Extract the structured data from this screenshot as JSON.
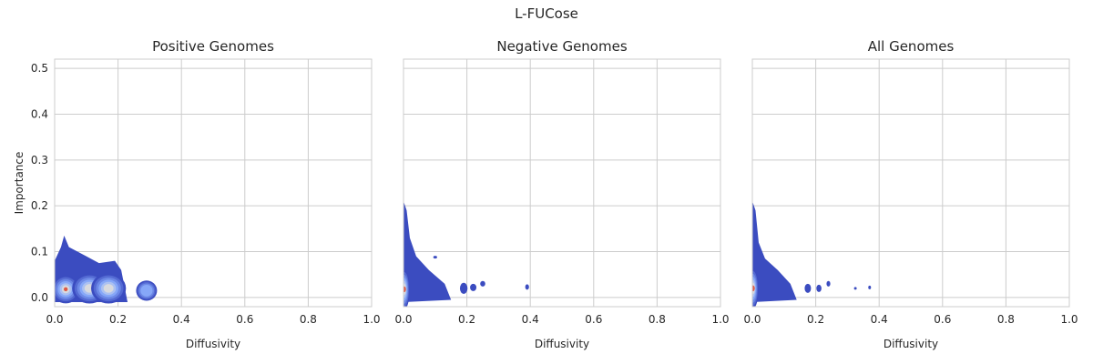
{
  "figure": {
    "title": "L-FUCose"
  },
  "chart_data": [
    {
      "type": "density-contour",
      "title": "Positive Genomes",
      "xlabel": "Diffusivity",
      "ylabel": "Importance",
      "xlim": [
        0.0,
        1.0
      ],
      "ylim": [
        -0.02,
        0.52
      ],
      "xticks": [
        0.0,
        0.2,
        0.4,
        0.6,
        0.8,
        1.0
      ],
      "xtick_labels": [
        "0.0",
        "0.2",
        "0.4",
        "0.6",
        "0.8",
        "1.0"
      ],
      "yticks": [
        0.0,
        0.1,
        0.2,
        0.3,
        0.4,
        0.5
      ],
      "ytick_labels": [
        "0.0",
        "0.1",
        "0.2",
        "0.3",
        "0.4",
        "0.5"
      ],
      "grid": true,
      "density_peaks": [
        {
          "x": 0.035,
          "y": 0.018,
          "sx": 0.02,
          "sy": 0.014,
          "w": 1.0
        },
        {
          "x": 0.11,
          "y": 0.02,
          "sx": 0.025,
          "sy": 0.015,
          "w": 0.62
        },
        {
          "x": 0.17,
          "y": 0.02,
          "sx": 0.025,
          "sy": 0.015,
          "w": 0.55
        },
        {
          "x": 0.29,
          "y": 0.015,
          "sx": 0.015,
          "sy": 0.01,
          "w": 0.35
        }
      ],
      "density_outline": [
        [
          0.0,
          -0.01
        ],
        [
          0.0,
          0.08
        ],
        [
          0.02,
          0.11
        ],
        [
          0.03,
          0.135
        ],
        [
          0.045,
          0.11
        ],
        [
          0.1,
          0.09
        ],
        [
          0.14,
          0.075
        ],
        [
          0.19,
          0.08
        ],
        [
          0.21,
          0.06
        ],
        [
          0.23,
          -0.01
        ]
      ]
    },
    {
      "type": "density-contour",
      "title": "Negative Genomes",
      "xlabel": "Diffusivity",
      "ylabel": "",
      "xlim": [
        0.0,
        1.0
      ],
      "ylim": [
        -0.02,
        0.52
      ],
      "xticks": [
        0.0,
        0.2,
        0.4,
        0.6,
        0.8,
        1.0
      ],
      "xtick_labels": [
        "0.0",
        "0.2",
        "0.4",
        "0.6",
        "0.8",
        "1.0"
      ],
      "yticks": [
        0.0,
        0.1,
        0.2,
        0.3,
        0.4,
        0.5
      ],
      "grid": true,
      "density_peaks": [
        {
          "x": 0.002,
          "y": 0.018,
          "sx": 0.008,
          "sy": 0.02,
          "w": 1.0
        }
      ],
      "density_outline": [
        [
          0.0,
          -0.01
        ],
        [
          0.0,
          0.21
        ],
        [
          0.01,
          0.19
        ],
        [
          0.02,
          0.13
        ],
        [
          0.04,
          0.09
        ],
        [
          0.08,
          0.06
        ],
        [
          0.13,
          0.03
        ],
        [
          0.15,
          -0.005
        ]
      ],
      "density_blobs": [
        {
          "x": 0.1,
          "y": 0.088,
          "rx": 0.006,
          "ry": 0.003
        },
        {
          "x": 0.19,
          "y": 0.02,
          "rx": 0.012,
          "ry": 0.012
        },
        {
          "x": 0.22,
          "y": 0.022,
          "rx": 0.01,
          "ry": 0.008
        },
        {
          "x": 0.25,
          "y": 0.03,
          "rx": 0.008,
          "ry": 0.006
        },
        {
          "x": 0.39,
          "y": 0.023,
          "rx": 0.006,
          "ry": 0.006
        }
      ]
    },
    {
      "type": "density-contour",
      "title": "All Genomes",
      "xlabel": "Diffusivity",
      "ylabel": "",
      "xlim": [
        0.0,
        1.0
      ],
      "ylim": [
        -0.02,
        0.52
      ],
      "xticks": [
        0.0,
        0.2,
        0.4,
        0.6,
        0.8,
        1.0
      ],
      "xtick_labels": [
        "0.0",
        "0.2",
        "0.4",
        "0.6",
        "0.8",
        "1.0"
      ],
      "yticks": [
        0.0,
        0.1,
        0.2,
        0.3,
        0.4,
        0.5
      ],
      "grid": true,
      "density_peaks": [
        {
          "x": 0.002,
          "y": 0.02,
          "sx": 0.008,
          "sy": 0.02,
          "w": 1.0
        }
      ],
      "density_outline": [
        [
          0.0,
          -0.01
        ],
        [
          0.0,
          0.21
        ],
        [
          0.01,
          0.19
        ],
        [
          0.02,
          0.12
        ],
        [
          0.04,
          0.085
        ],
        [
          0.08,
          0.06
        ],
        [
          0.12,
          0.03
        ],
        [
          0.14,
          -0.005
        ]
      ],
      "density_blobs": [
        {
          "x": 0.175,
          "y": 0.02,
          "rx": 0.01,
          "ry": 0.01
        },
        {
          "x": 0.21,
          "y": 0.02,
          "rx": 0.008,
          "ry": 0.008
        },
        {
          "x": 0.24,
          "y": 0.03,
          "rx": 0.006,
          "ry": 0.006
        },
        {
          "x": 0.325,
          "y": 0.02,
          "rx": 0.003,
          "ry": 0.003
        },
        {
          "x": 0.37,
          "y": 0.022,
          "rx": 0.004,
          "ry": 0.004
        }
      ]
    }
  ],
  "colors": {
    "low": "#3b4cc0",
    "mid": "#8db0fe",
    "light": "#dddcdc",
    "high": "#dd5a47",
    "grid": "#cccccc"
  }
}
